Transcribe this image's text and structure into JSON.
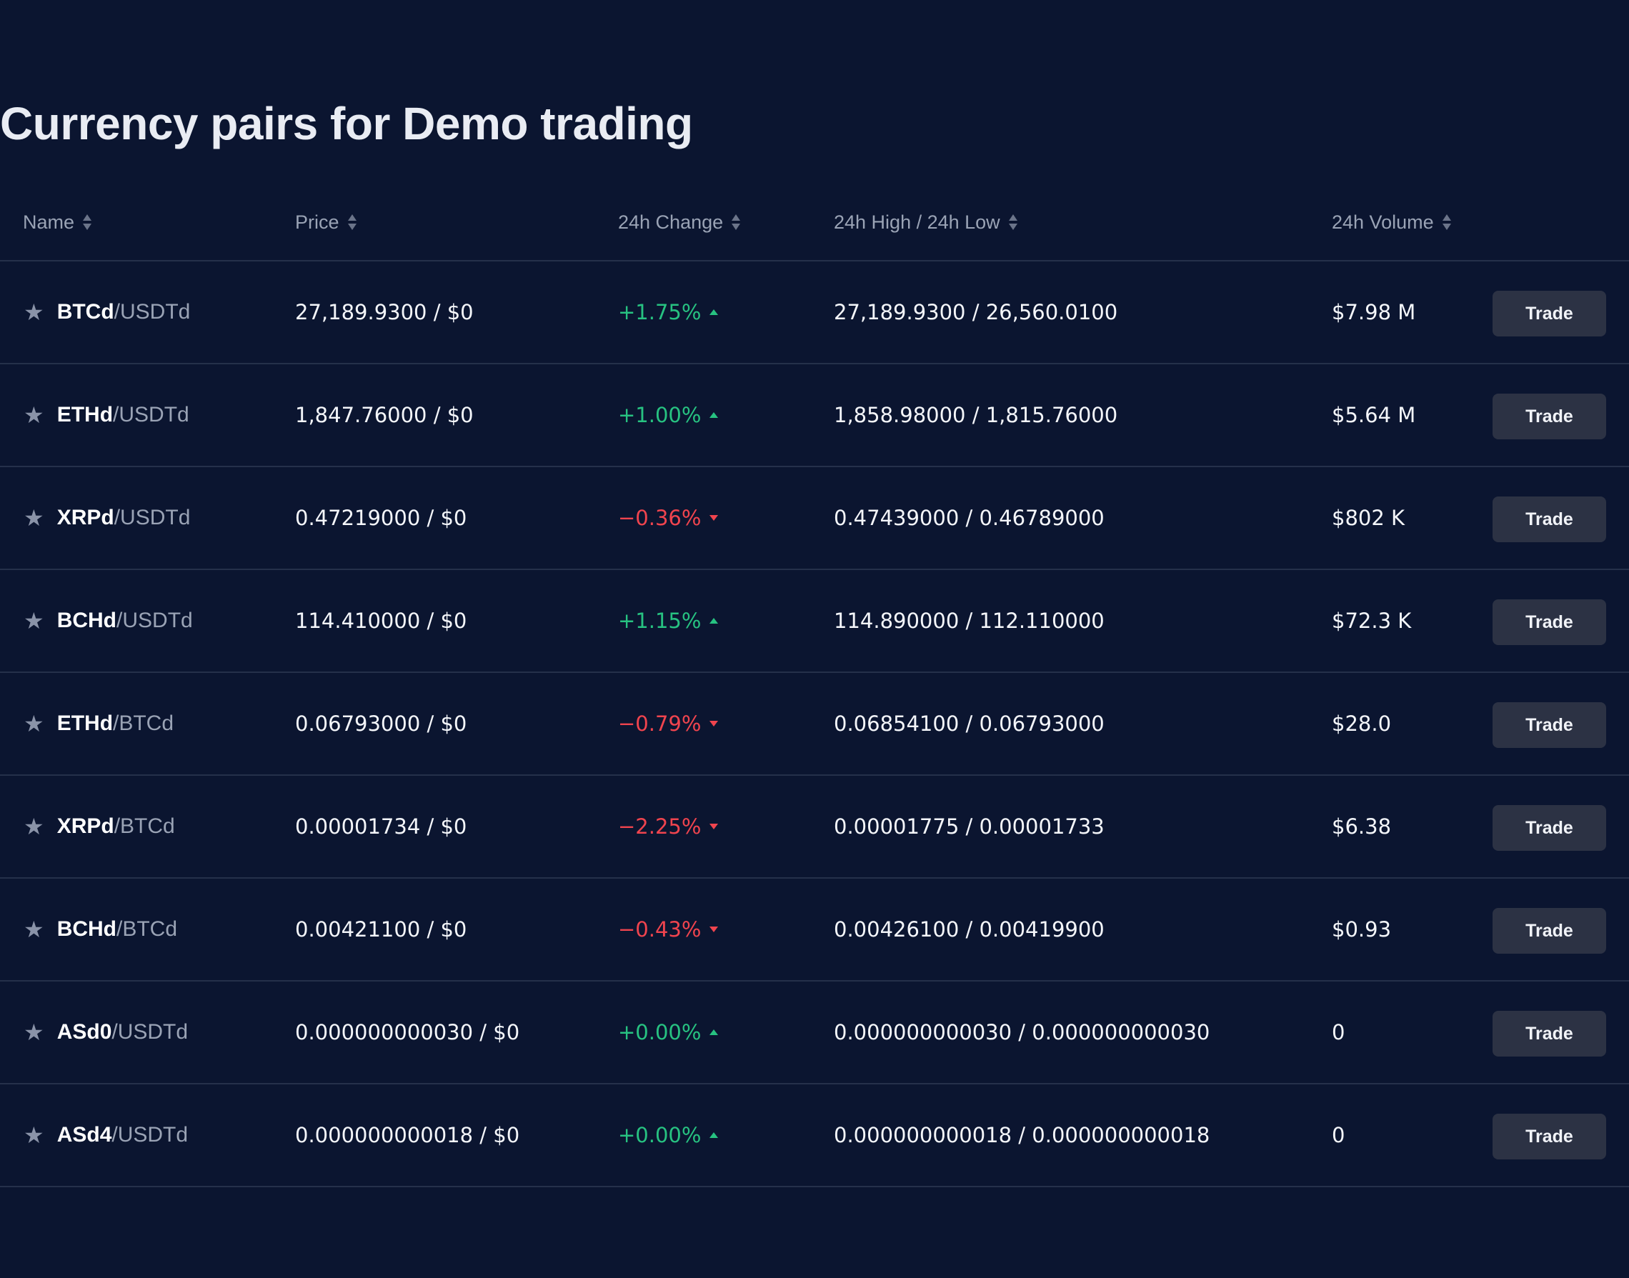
{
  "page": {
    "title": "Currency pairs for Demo trading"
  },
  "columns": {
    "name": "Name",
    "price": "Price",
    "change": "24h Change",
    "high_low": "24h High / 24h Low",
    "volume": "24h Volume"
  },
  "trade_label": "Trade",
  "colors": {
    "background": "#0b1530",
    "positive": "#27c281",
    "negative": "#f0444e",
    "button": "#2c3244"
  },
  "rows": [
    {
      "base": "BTCd",
      "quote": "/USDTd",
      "price": "27,189.9300 / $0",
      "change": "+1.75%",
      "direction": "up",
      "high_low": "27,189.9300 / 26,560.0100",
      "volume": "$7.98 M"
    },
    {
      "base": "ETHd",
      "quote": "/USDTd",
      "price": "1,847.76000 / $0",
      "change": "+1.00%",
      "direction": "up",
      "high_low": "1,858.98000 / 1,815.76000",
      "volume": "$5.64 M"
    },
    {
      "base": "XRPd",
      "quote": "/USDTd",
      "price": "0.47219000 / $0",
      "change": "−0.36%",
      "direction": "down",
      "high_low": "0.47439000 / 0.46789000",
      "volume": "$802 K"
    },
    {
      "base": "BCHd",
      "quote": "/USDTd",
      "price": "114.410000 / $0",
      "change": "+1.15%",
      "direction": "up",
      "high_low": "114.890000 / 112.110000",
      "volume": "$72.3 K"
    },
    {
      "base": "ETHd",
      "quote": "/BTCd",
      "price": "0.06793000 / $0",
      "change": "−0.79%",
      "direction": "down",
      "high_low": "0.06854100 / 0.06793000",
      "volume": "$28.0"
    },
    {
      "base": "XRPd",
      "quote": "/BTCd",
      "price": "0.00001734 / $0",
      "change": "−2.25%",
      "direction": "down",
      "high_low": "0.00001775 / 0.00001733",
      "volume": "$6.38"
    },
    {
      "base": "BCHd",
      "quote": "/BTCd",
      "price": "0.00421100 / $0",
      "change": "−0.43%",
      "direction": "down",
      "high_low": "0.00426100 / 0.00419900",
      "volume": "$0.93"
    },
    {
      "base": "ASd0",
      "quote": "/USDTd",
      "price": "0.000000000030 / $0",
      "change": "+0.00%",
      "direction": "up",
      "high_low": "0.000000000030 / 0.000000000030",
      "volume": "0"
    },
    {
      "base": "ASd4",
      "quote": "/USDTd",
      "price": "0.000000000018 / $0",
      "change": "+0.00%",
      "direction": "up",
      "high_low": "0.000000000018 / 0.000000000018",
      "volume": "0"
    }
  ]
}
